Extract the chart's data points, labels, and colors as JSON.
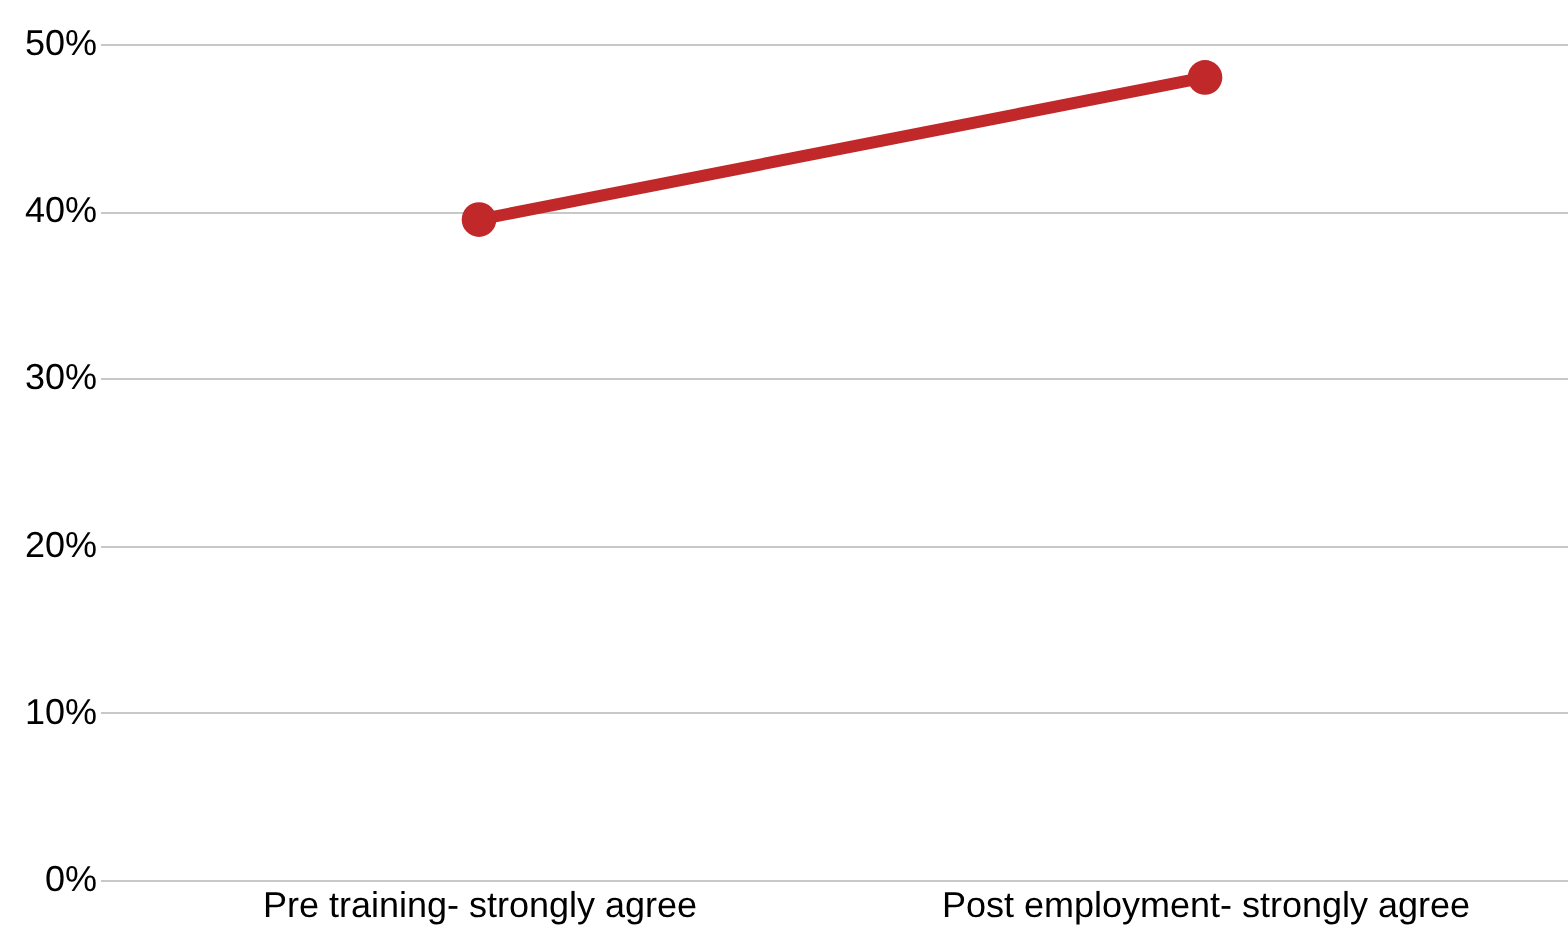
{
  "chart_data": {
    "type": "line",
    "categories": [
      "Pre training- strongly agree",
      "Post employment- strongly agree"
    ],
    "series": [
      {
        "color": "#c0282a",
        "values": [
          39.5,
          48
        ]
      }
    ],
    "ylim": [
      0,
      50
    ],
    "yticks": [
      {
        "value": 0,
        "label": "0%"
      },
      {
        "value": 10,
        "label": "10%"
      },
      {
        "value": 20,
        "label": "20%"
      },
      {
        "value": 30,
        "label": "30%"
      },
      {
        "value": 40,
        "label": "40%"
      },
      {
        "value": 50,
        "label": "50%"
      }
    ],
    "grid": "y",
    "marker": "circle",
    "line_style": "solid",
    "legend": false
  }
}
